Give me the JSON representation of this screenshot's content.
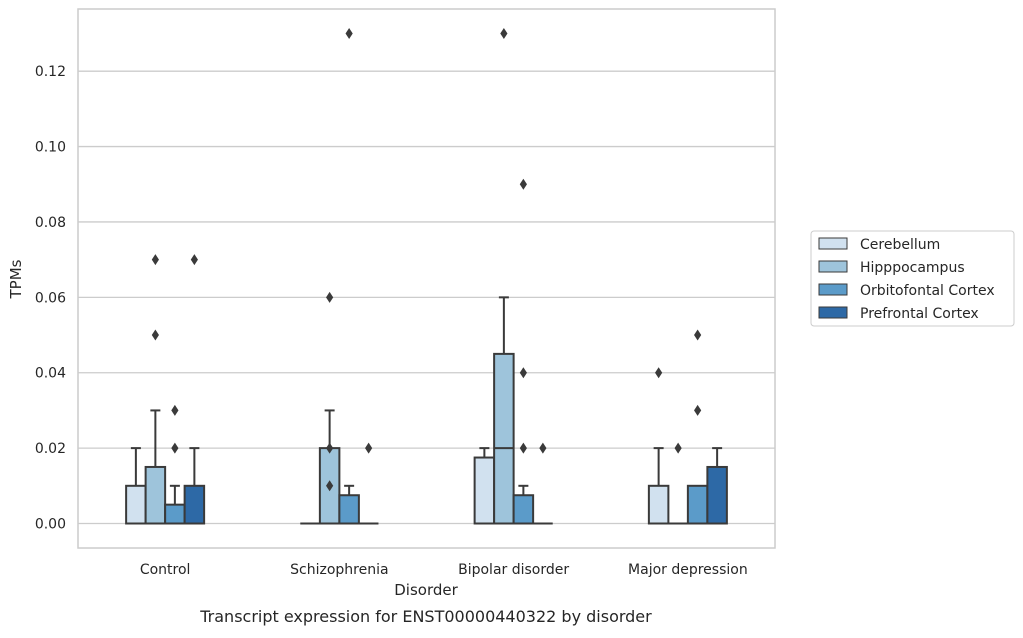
{
  "chart_data": {
    "type": "box",
    "caption": "Transcript expression for ENST00000440322 by disorder",
    "xlabel": "Disorder",
    "ylabel": "TPMs",
    "ylim": [
      -0.0065,
      0.1365
    ],
    "yticks": [
      "0.00",
      "0.02",
      "0.04",
      "0.06",
      "0.08",
      "0.10",
      "0.12"
    ],
    "grid": "horizontal",
    "legend_position": "right-center",
    "categories": [
      "Control",
      "Schizophrenia",
      "Bipolar disorder",
      "Major depression"
    ],
    "series": [
      {
        "name": "Cerebellum",
        "color": "#d1e1ef",
        "boxes": [
          {
            "whisker_low": 0.0,
            "q1": 0.0,
            "median": 0.0,
            "q3": 0.01,
            "whisker_high": 0.02,
            "outliers": []
          },
          {
            "whisker_low": 0.0,
            "q1": 0.0,
            "median": 0.0,
            "q3": 0.0,
            "whisker_high": 0.0,
            "outliers": []
          },
          {
            "whisker_low": 0.0,
            "q1": 0.0,
            "median": 0.0,
            "q3": 0.0175,
            "whisker_high": 0.02,
            "outliers": []
          },
          {
            "whisker_low": 0.0,
            "q1": 0.0,
            "median": 0.0,
            "q3": 0.01,
            "whisker_high": 0.02,
            "outliers": [
              0.04
            ]
          }
        ]
      },
      {
        "name": "Hipppocampus",
        "color": "#9ec4db",
        "boxes": [
          {
            "whisker_low": 0.0,
            "q1": 0.0,
            "median": 0.0,
            "q3": 0.015,
            "whisker_high": 0.03,
            "outliers": [
              0.05,
              0.07
            ]
          },
          {
            "whisker_low": 0.0,
            "q1": 0.0,
            "median": 0.0,
            "q3": 0.02,
            "whisker_high": 0.03,
            "outliers": [
              0.01,
              0.02,
              0.06
            ]
          },
          {
            "whisker_low": 0.0,
            "q1": 0.0,
            "median": 0.02,
            "q3": 0.045,
            "whisker_high": 0.06,
            "outliers": [
              0.13
            ]
          },
          {
            "whisker_low": 0.0,
            "q1": 0.0,
            "median": 0.0,
            "q3": 0.0,
            "whisker_high": 0.0,
            "outliers": [
              0.02
            ]
          }
        ]
      },
      {
        "name": "Orbitofontal Cortex",
        "color": "#5b9bc9",
        "boxes": [
          {
            "whisker_low": 0.0,
            "q1": 0.0,
            "median": 0.0,
            "q3": 0.005,
            "whisker_high": 0.01,
            "outliers": [
              0.02,
              0.03
            ]
          },
          {
            "whisker_low": 0.0,
            "q1": 0.0,
            "median": 0.0,
            "q3": 0.0075,
            "whisker_high": 0.01,
            "outliers": [
              0.13
            ]
          },
          {
            "whisker_low": 0.0,
            "q1": 0.0,
            "median": 0.0,
            "q3": 0.0075,
            "whisker_high": 0.01,
            "outliers": [
              0.02,
              0.04,
              0.09
            ]
          },
          {
            "whisker_low": 0.0,
            "q1": 0.0,
            "median": 0.0,
            "q3": 0.01,
            "whisker_high": 0.01,
            "outliers": [
              0.03,
              0.05
            ]
          }
        ]
      },
      {
        "name": "Prefrontal Cortex",
        "color": "#2d69a6",
        "boxes": [
          {
            "whisker_low": 0.0,
            "q1": 0.0,
            "median": 0.0,
            "q3": 0.01,
            "whisker_high": 0.02,
            "outliers": [
              0.07
            ]
          },
          {
            "whisker_low": 0.0,
            "q1": 0.0,
            "median": 0.0,
            "q3": 0.0,
            "whisker_high": 0.0,
            "outliers": [
              0.02
            ]
          },
          {
            "whisker_low": 0.0,
            "q1": 0.0,
            "median": 0.0,
            "q3": 0.0,
            "whisker_high": 0.0,
            "outliers": [
              0.02
            ]
          },
          {
            "whisker_low": 0.0,
            "q1": 0.0,
            "median": 0.0,
            "q3": 0.015,
            "whisker_high": 0.02,
            "outliers": []
          }
        ]
      }
    ]
  }
}
